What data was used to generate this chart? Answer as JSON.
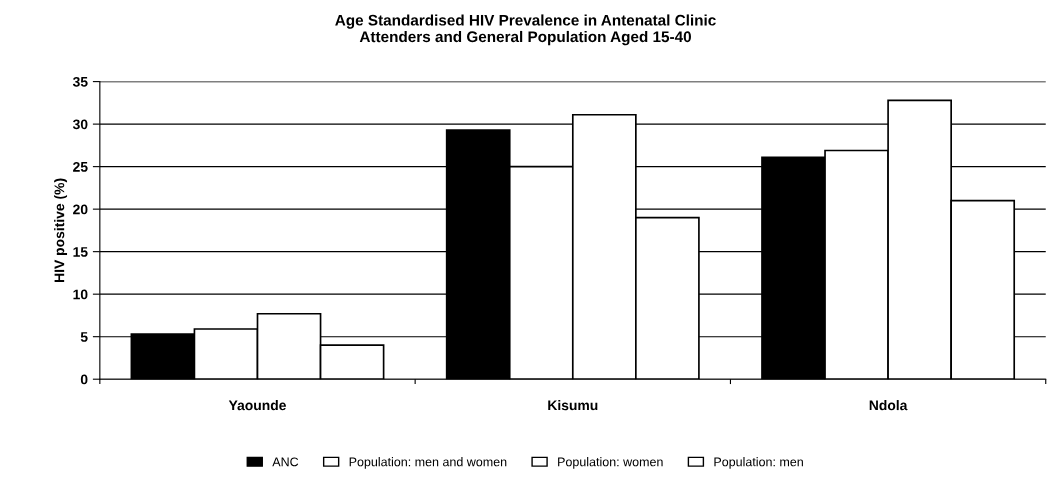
{
  "chart_data": {
    "type": "bar",
    "title": "Age Standardised HIV Prevalence in Antenatal Clinic\nAttenders and General Population Aged 15-40",
    "ylabel": "HIV positive (%)",
    "categories": [
      "Yaounde",
      "Kisumu",
      "Ndola"
    ],
    "series": [
      {
        "name": "ANC",
        "color": "#000000",
        "values": [
          5.3,
          29.3,
          26.1
        ]
      },
      {
        "name": "Population: men and women",
        "color": "#ffffff",
        "values": [
          5.9,
          25.0,
          26.9
        ]
      },
      {
        "name": "Population: women",
        "color": "#ffffff",
        "values": [
          7.7,
          31.1,
          32.8
        ]
      },
      {
        "name": "Population: men",
        "color": "#ffffff",
        "values": [
          4.0,
          19.0,
          21.0
        ]
      }
    ],
    "ylim": [
      0,
      35
    ],
    "yticks": [
      0,
      5,
      10,
      15,
      20,
      25,
      30,
      35
    ],
    "grid": "y",
    "legend": "bottom"
  }
}
